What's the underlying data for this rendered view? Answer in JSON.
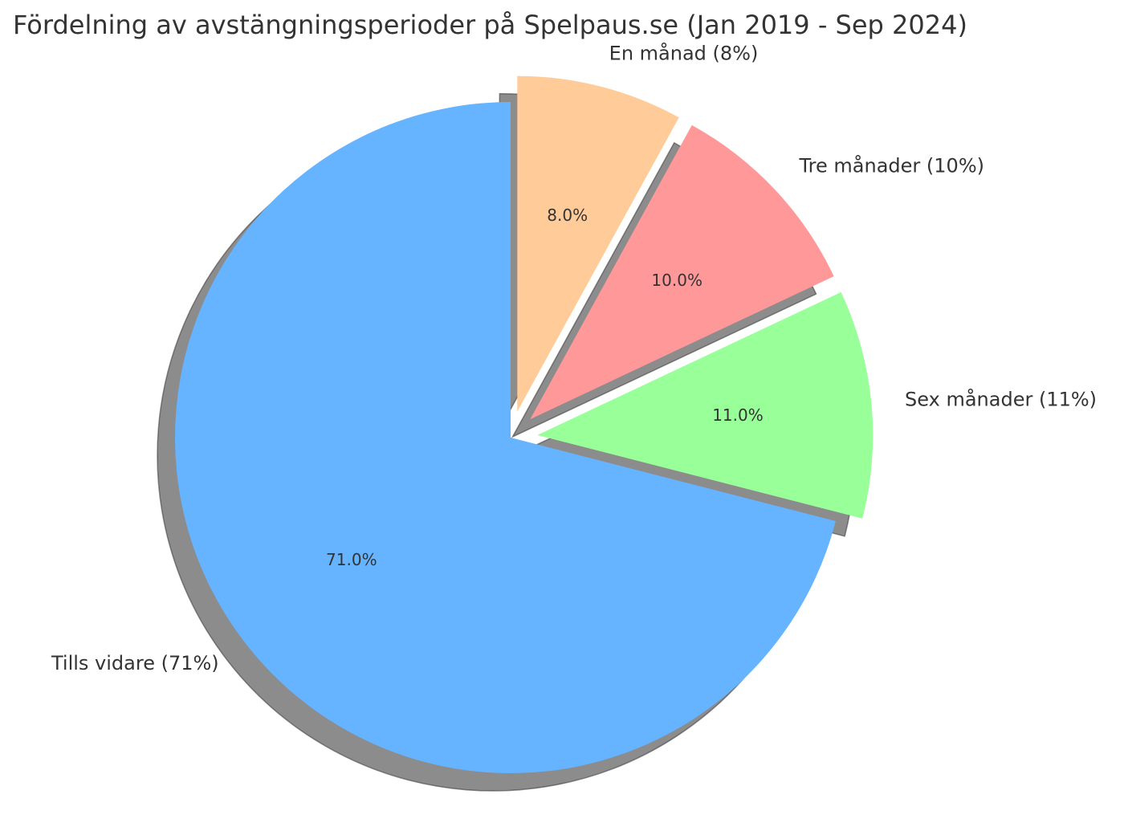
{
  "chart_data": {
    "type": "pie",
    "title": "Fördelning av avstängningsperioder på Spelpaus.se (Jan 2019 - Sep 2024)",
    "categories": [
      "Tills vidare",
      "Sex månader",
      "Tre månader",
      "En månad"
    ],
    "values": [
      71,
      11,
      10,
      8
    ],
    "labels": [
      "Tills vidare (71%)",
      "Sex månader (11%)",
      "Tre månader (10%)",
      "En månad (8%)"
    ],
    "autopct": [
      "71.0%",
      "11.0%",
      "10.0%",
      "8.0%"
    ],
    "colors": [
      "#66b3ff",
      "#99ff99",
      "#ff9999",
      "#ffcc99"
    ],
    "explode": [
      0,
      0.08,
      0.08,
      0.08
    ],
    "start_angle": 90,
    "shadow": true,
    "legend": "none"
  }
}
